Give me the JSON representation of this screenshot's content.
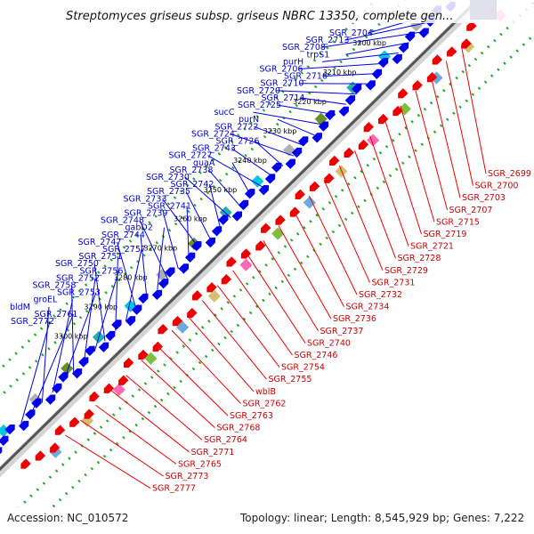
{
  "title": "Streptomyces griseus subsp. griseus NBRC 13350, complete gen...",
  "footer": {
    "accession": "Accession: NC_010572",
    "topology": "Topology: linear; Length: 8,545,929 bp; Genes: 7,222"
  },
  "colors": {
    "forward_gene": "#0000ee",
    "reverse_gene": "#ee0000",
    "forward_label": "#0000cc",
    "reverse_label": "#cc0000",
    "backbone": "#555555",
    "track_dots": "#22aa22"
  },
  "icons": {
    "forward_arrow": "blue-right-arrow",
    "reverse_arrow": "red-left-arrow"
  },
  "kbp_ticks": [
    "3180 kbp",
    "3190 kbp",
    "3200 kbp",
    "3210 kbp",
    "3220 kbp",
    "3230 kbp",
    "3240 kbp",
    "3250 kbp",
    "3260 kbp",
    "3270 kbp",
    "3280 kbp",
    "3290 kbp",
    "3300 kbp"
  ],
  "top_labels": [
    "SGR_2704",
    "SGR_2713",
    "SGR_2708",
    "trpS1",
    "purH",
    "SGR_2706",
    "SGR_2716",
    "SGR_2710",
    "SGR_2720",
    "SGR_2714",
    "SGR_2725",
    "sucC",
    "purN",
    "SGR_2722",
    "SGR_2724",
    "SGR_2726",
    "SGR_2743",
    "SGR_2727",
    "guaA",
    "SGR_2738",
    "SGR_2730",
    "SGR_2742",
    "SGR_2735",
    "SGR_2733",
    "SGR_2741",
    "SGR_2739",
    "SGR_2748",
    "gabD2",
    "SGR_2744",
    "SGR_2747",
    "SGR_2757",
    "SGR_2751",
    "SGR_2750",
    "SGR_2756",
    "SGR_2752",
    "SGR_2758",
    "SGR_2753",
    "groEL",
    "bldM",
    "SGR_2761",
    "SGR_2772"
  ],
  "bottom_labels": [
    "SGR_2699",
    "SGR_2700",
    "SGR_2703",
    "SGR_2707",
    "SGR_2715",
    "SGR_2719",
    "SGR_2721",
    "SGR_2728",
    "SGR_2729",
    "SGR_2731",
    "SGR_2732",
    "SGR_2734",
    "SGR_2736",
    "SGR_2737",
    "SGR_2740",
    "SGR_2746",
    "SGR_2754",
    "SGR_2755",
    "wblB",
    "SGR_2762",
    "SGR_2763",
    "SGR_2768",
    "SGR_2764",
    "SGR_2771",
    "SGR_2765",
    "SGR_2773",
    "SGR_2777"
  ]
}
